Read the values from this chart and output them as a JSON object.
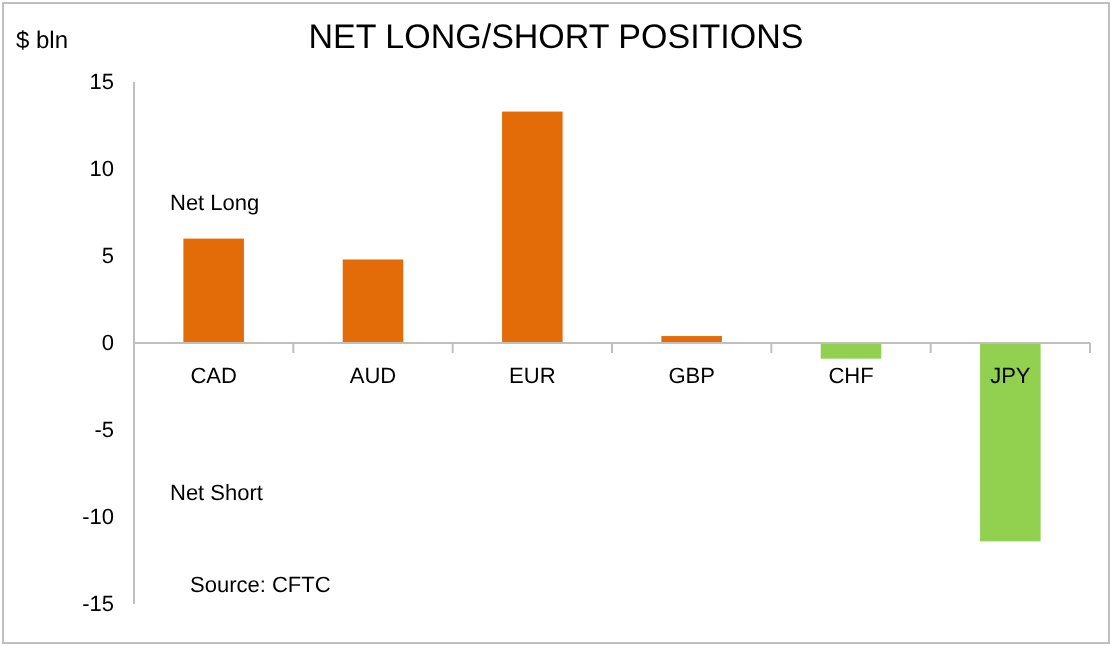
{
  "chart_data": {
    "type": "bar",
    "title": "NET LONG/SHORT POSITIONS",
    "ylabel": "$ bln",
    "categories": [
      "CAD",
      "AUD",
      "EUR",
      "GBP",
      "CHF",
      "JPY"
    ],
    "values": [
      6.0,
      4.8,
      13.3,
      0.4,
      -0.9,
      -11.4
    ],
    "colors": [
      "#e36c09",
      "#e36c09",
      "#e36c09",
      "#e36c09",
      "#92d050",
      "#92d050"
    ],
    "ylim": [
      -15,
      15
    ],
    "yticks": [
      -15,
      -10,
      -5,
      0,
      5,
      10,
      15
    ],
    "grid": false,
    "annotations": [
      "Net Long",
      "Net Short",
      "Source: CFTC"
    ]
  }
}
